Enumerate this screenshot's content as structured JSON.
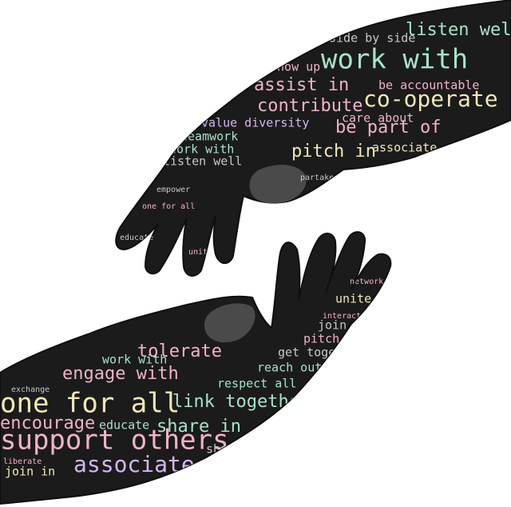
{
  "colors": {
    "hand_fill": "#1b1b1b",
    "thumbnail": "#4a4a4a",
    "mint": "#a7e3c7",
    "pink": "#f0b3c8",
    "lavender": "#d4b6f0",
    "cream": "#f2e7b8",
    "gray": "#c7c7c7"
  },
  "upper_hand": {
    "words": {
      "w1": "work with",
      "w2": "listen well",
      "w3": "co-operate",
      "w4": "assist in",
      "w5": "contribute",
      "w6": "be part of",
      "w7": "teamwork",
      "w8": "pitch in",
      "w9": "associate",
      "w10": "show up",
      "w11": "side by side",
      "w12": "be accountable",
      "w13": "value diversity",
      "w14": "care about",
      "w15": "work with",
      "w16": "listen well",
      "w17": "empower",
      "w18": "one for all",
      "w19": "educate",
      "w20": "unite",
      "w21": "partake in"
    }
  },
  "lower_hand": {
    "words": {
      "w1": "support others",
      "w2": "one for all",
      "w3": "associate",
      "w4": "engage with",
      "w5": "tolerate",
      "w6": "share in",
      "w7": "encourage",
      "w8": "link together",
      "w9": "respect all",
      "w10": "reach out",
      "w11": "join in",
      "w12": "get together",
      "w13": "pitch in",
      "w14": "unite",
      "w15": "educate",
      "w16": "work with",
      "w17": "join in",
      "w18": "share in",
      "w19": "interact",
      "w20": "network",
      "w21": "exchange",
      "w22": "liberate"
    }
  }
}
